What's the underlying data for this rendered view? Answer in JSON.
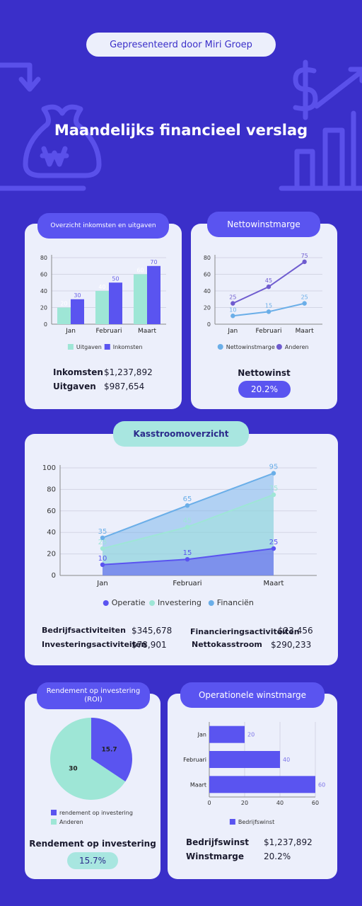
{
  "header": {
    "presenter": "Gepresenteerd door Miri Groep",
    "title": "Maandelijks financieel verslag"
  },
  "colors": {
    "background": "#3a2fc9",
    "card": "#eceffb",
    "accent_purple": "#5a54f0",
    "accent_mint": "#a8e6e0",
    "accent_blue": "#6aaee8"
  },
  "icons": [
    "money-bag-won-icon",
    "dollar-sign-icon",
    "growth-bar-chart-icon",
    "down-arrow-icon"
  ],
  "income_card": {
    "title": "Overzicht inkomsten en uitgaven",
    "income_label": "Inkomsten",
    "income_value": "$1,237,892",
    "expenses_label": "Uitgaven",
    "expenses_value": "$987,654"
  },
  "margin_card": {
    "title": "Nettowinstmarge",
    "net_label": "Nettowinst",
    "net_value": "20.2%"
  },
  "cashflow_card": {
    "title": "Kasstroomoverzicht",
    "stats": [
      {
        "label": "Bedrijfsactiviteiten",
        "value": "$345,678"
      },
      {
        "label": "Investeringsactiviteiten",
        "value": "$78,901"
      },
      {
        "label": "Financieringsactiviteiten",
        "value": "$23,456"
      },
      {
        "label": "Nettokasstroom",
        "value": "$290,233"
      }
    ]
  },
  "roi_card": {
    "title": "Rendement op investering (ROI)",
    "roi_label": "Rendement op investering",
    "roi_value": "15.7%"
  },
  "opmargin_card": {
    "title": "Operationele winstmarge",
    "profit_label": "Bedrijfswinst",
    "profit_value": "$1,237,892",
    "margin_label": "Winstmarge",
    "margin_value": "20.2%"
  },
  "chart_data": [
    {
      "id": "income-expenses",
      "type": "bar",
      "categories": [
        "Jan",
        "Februari",
        "Maart"
      ],
      "series": [
        {
          "name": "Uitgaven",
          "color": "#9ee6d6",
          "values": [
            20,
            40,
            60
          ]
        },
        {
          "name": "Inkomsten",
          "color": "#5a54f0",
          "values": [
            30,
            50,
            70
          ]
        }
      ],
      "ylim": [
        0,
        80
      ],
      "yticks": [
        0,
        20,
        40,
        60,
        80
      ],
      "grid": true,
      "legend": "bottom"
    },
    {
      "id": "net-margin",
      "type": "line",
      "categories": [
        "Jan",
        "Februari",
        "Maart"
      ],
      "series": [
        {
          "name": "Nettowinstmarge",
          "color": "#6aaee8",
          "values": [
            10,
            15,
            25
          ]
        },
        {
          "name": "Anderen",
          "color": "#6f5ccf",
          "values": [
            25,
            45,
            75
          ]
        }
      ],
      "ylim": [
        0,
        80
      ],
      "yticks": [
        0,
        20,
        40,
        60,
        80
      ],
      "grid": true,
      "legend": "bottom"
    },
    {
      "id": "cashflow",
      "type": "area",
      "categories": [
        "Jan",
        "Februari",
        "Maart"
      ],
      "series": [
        {
          "name": "Operatie",
          "color": "#5a54f0",
          "values": [
            10,
            15,
            25
          ]
        },
        {
          "name": "Investering",
          "color": "#9ee6d6",
          "values": [
            25,
            45,
            75
          ]
        },
        {
          "name": "Financiën",
          "color": "#6aaee8",
          "values": [
            35,
            65,
            95
          ]
        }
      ],
      "ylim": [
        0,
        100
      ],
      "yticks": [
        0,
        20,
        40,
        60,
        80,
        100
      ],
      "grid": true,
      "legend": "bottom"
    },
    {
      "id": "roi",
      "type": "pie",
      "slices": [
        {
          "name": "rendement op investering",
          "value": 15.7,
          "color": "#5a54f0"
        },
        {
          "name": "Anderen",
          "value": 30,
          "color": "#9ee6d6"
        }
      ],
      "legend": "bottom"
    },
    {
      "id": "operating-margin",
      "type": "bar",
      "orientation": "horizontal",
      "categories": [
        "Jan",
        "Februari",
        "Maart"
      ],
      "series": [
        {
          "name": "Bedrijfswinst",
          "color": "#5a54f0",
          "values": [
            20,
            40,
            60
          ]
        }
      ],
      "xlim": [
        0,
        60
      ],
      "xticks": [
        0,
        20,
        40,
        60
      ],
      "grid": true,
      "legend": "bottom"
    }
  ]
}
